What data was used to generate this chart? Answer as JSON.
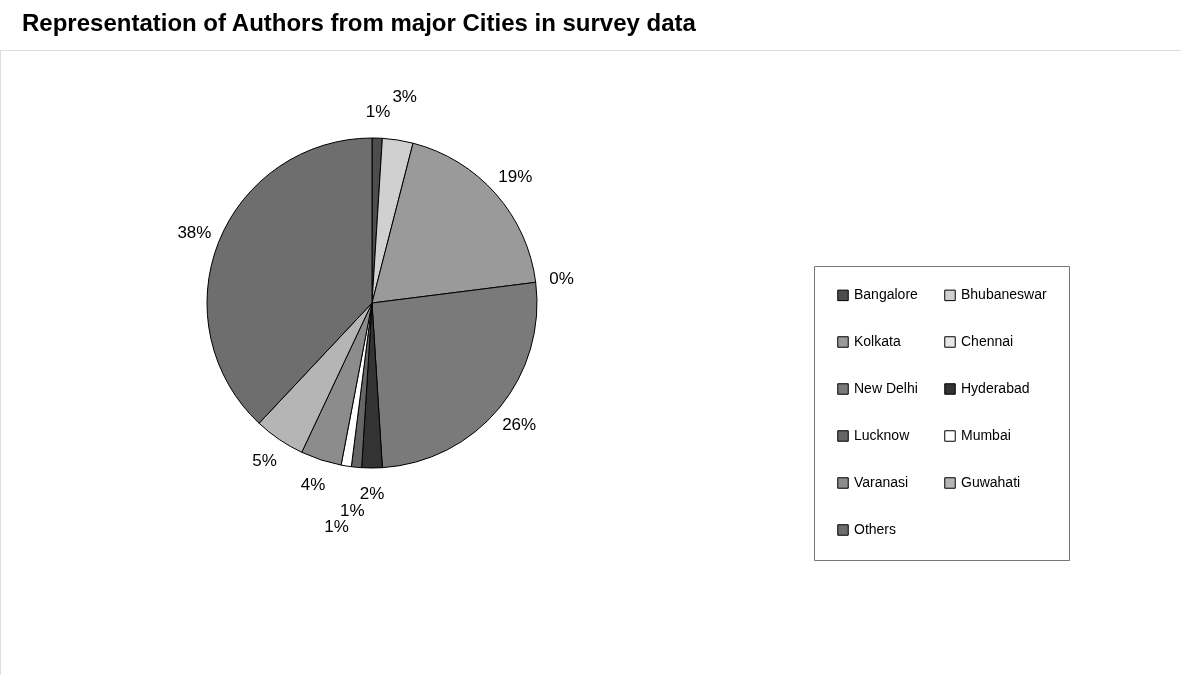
{
  "chart_data": {
    "type": "pie",
    "title": "Representation of Authors from major Cities in survey data",
    "categories": [
      "Bangalore",
      "Bhubaneswar",
      "Kolkata",
      "Chennai",
      "New Delhi",
      "Hyderabad",
      "Lucknow",
      "Mumbai",
      "Varanasi",
      "Guwahati",
      "Others"
    ],
    "values": [
      1,
      3,
      19,
      0,
      26,
      2,
      1,
      1,
      4,
      5,
      38
    ],
    "value_labels": [
      "1%",
      "3%",
      "19%",
      "0%",
      "26%",
      "2%",
      "1%",
      "1%",
      "4%",
      "5%",
      "38%"
    ],
    "colors": [
      "#4d4d4d",
      "#d0d0d0",
      "#9a9a9a",
      "#e6e6e6",
      "#7a7a7a",
      "#333333",
      "#666666",
      "#ffffff",
      "#8c8c8c",
      "#b5b5b5",
      "#6e6e6e"
    ],
    "legend": "right"
  }
}
